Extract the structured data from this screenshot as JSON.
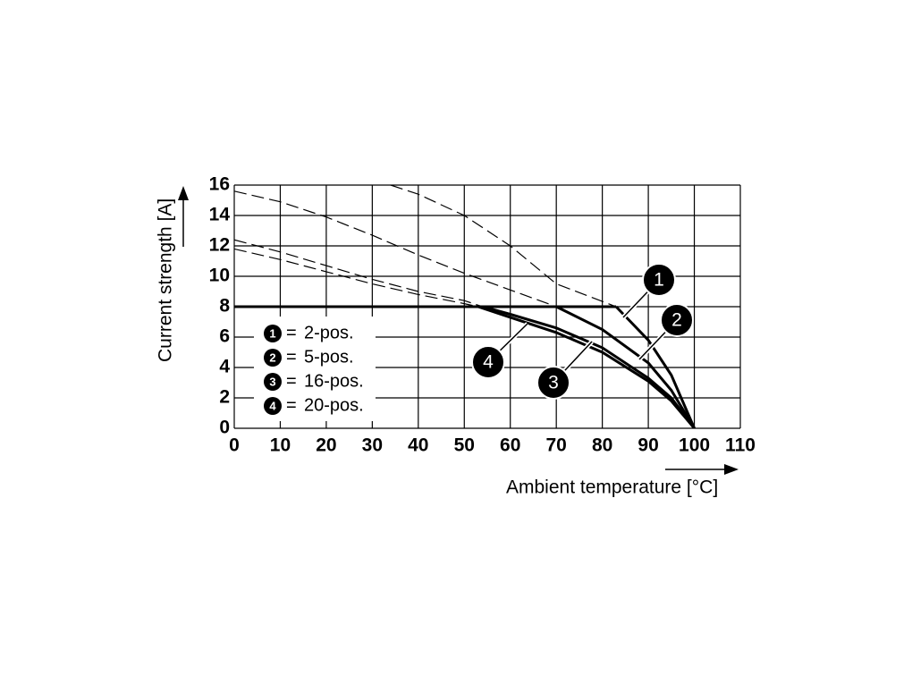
{
  "chart_data": {
    "type": "line",
    "xlabel": "Ambient temperature [°C]",
    "ylabel": "Current strength [A]",
    "xlim": [
      0,
      110
    ],
    "xticks": [
      0,
      10,
      20,
      30,
      40,
      50,
      60,
      70,
      80,
      90,
      100,
      110
    ],
    "ylim": [
      0,
      16
    ],
    "yticks": [
      0,
      2,
      4,
      6,
      8,
      10,
      12,
      14,
      16
    ],
    "grid": true,
    "color": "#000000",
    "legend_separator": "=",
    "limit_line": {
      "x": [
        0,
        83
      ],
      "values": [
        8,
        8
      ]
    },
    "series": [
      {
        "marker": "1",
        "name": "2-pos.",
        "x": [
          34,
          40,
          50,
          60,
          70,
          83,
          90,
          95,
          100
        ],
        "values": [
          16,
          15.4,
          14,
          12,
          9.5,
          8,
          5.8,
          3.5,
          0
        ]
      },
      {
        "marker": "2",
        "name": "5-pos.",
        "x": [
          0,
          10,
          20,
          30,
          40,
          50,
          60,
          70,
          80,
          90,
          95,
          100
        ],
        "values": [
          15.6,
          14.9,
          13.9,
          12.7,
          11.4,
          10.2,
          9.1,
          8,
          6.5,
          4.3,
          2.5,
          0
        ]
      },
      {
        "marker": "3",
        "name": "16-pos.",
        "x": [
          0,
          10,
          20,
          30,
          40,
          50,
          54,
          60,
          70,
          80,
          90,
          95,
          100
        ],
        "values": [
          12.4,
          11.6,
          10.7,
          9.8,
          9,
          8.4,
          8,
          7.5,
          6.6,
          5.3,
          3.3,
          2,
          0
        ]
      },
      {
        "marker": "4",
        "name": "20-pos.",
        "x": [
          0,
          10,
          20,
          30,
          40,
          50,
          53,
          60,
          70,
          80,
          90,
          95,
          100
        ],
        "values": [
          11.8,
          11.1,
          10.3,
          9.5,
          8.8,
          8.2,
          8,
          7.3,
          6.3,
          5,
          3.1,
          1.8,
          0
        ]
      }
    ]
  }
}
